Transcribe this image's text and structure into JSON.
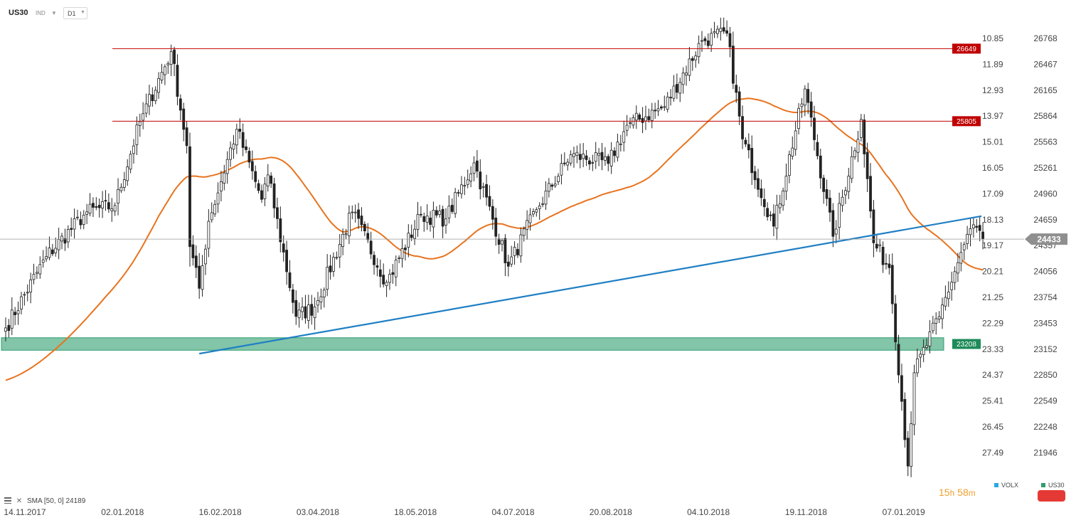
{
  "header": {
    "symbol": "US30",
    "symbol_type": "IND",
    "timeframe": "D1"
  },
  "colors": {
    "candle_up": "#ffffff",
    "candle_down": "#222222",
    "sma": "#e8731e",
    "trendline": "#1f7fc4",
    "resistance": "#c00000",
    "support_zone": "#2e9e6e",
    "price_marker": "#8f8f8f"
  },
  "chart_data": {
    "type": "candlestick",
    "symbol": "US30",
    "timeframe": "D1",
    "x_tick_labels": [
      "14.11.2017",
      "02.01.2018",
      "16.02.2018",
      "03.04.2018",
      "18.05.2018",
      "04.07.2018",
      "20.08.2018",
      "04.10.2018",
      "19.11.2018",
      "07.01.2019"
    ],
    "y_price_ticks": [
      26768,
      26467,
      26165,
      25864,
      25563,
      25261,
      24960,
      24659,
      24357,
      24056,
      23754,
      23453,
      23152,
      22850,
      22549,
      22248,
      21946
    ],
    "y_secondary_ticks": [
      "10.85",
      "11.89",
      "12.93",
      "13.97",
      "15.01",
      "16.05",
      "17.09",
      "18.13",
      "19.17",
      "20.21",
      "21.25",
      "22.29",
      "23.33",
      "24.37",
      "25.41",
      "26.45",
      "27.49"
    ],
    "ylim": [
      21740,
      26970
    ],
    "horizontal_levels": [
      {
        "label": "26649",
        "value": 26649,
        "kind": "resistance"
      },
      {
        "label": "25805",
        "value": 25805,
        "kind": "resistance"
      }
    ],
    "support_zone": {
      "label": "23208",
      "low": 23140,
      "high": 23285
    },
    "current_price": {
      "label": "24433",
      "value": 24433
    },
    "trendline": {
      "from": {
        "x": "2018-02-08",
        "y": 23100
      },
      "to": {
        "x": "2019-01-18",
        "y": 24700
      }
    },
    "sma": {
      "name": "SMA",
      "params": "[50, 0]",
      "last_value": "24189"
    },
    "anchor_closes": [
      [
        "2017-11-14",
        23400
      ],
      [
        "2017-12-01",
        24230
      ],
      [
        "2017-12-20",
        24750
      ],
      [
        "2018-01-02",
        24824
      ],
      [
        "2018-01-12",
        25800
      ],
      [
        "2018-01-26",
        26616
      ],
      [
        "2018-02-02",
        25520
      ],
      [
        "2018-02-05",
        24345
      ],
      [
        "2018-02-08",
        23860
      ],
      [
        "2018-02-13",
        24640
      ],
      [
        "2018-02-26",
        25710
      ],
      [
        "2018-03-08",
        24895
      ],
      [
        "2018-03-12",
        25180
      ],
      [
        "2018-03-23",
        23533
      ],
      [
        "2018-04-02",
        23644
      ],
      [
        "2018-04-18",
        24748
      ],
      [
        "2018-05-03",
        23930
      ],
      [
        "2018-05-18",
        24715
      ],
      [
        "2018-05-30",
        24668
      ],
      [
        "2018-06-12",
        25320
      ],
      [
        "2018-06-27",
        24117
      ],
      [
        "2018-07-10",
        24776
      ],
      [
        "2018-07-25",
        25414
      ],
      [
        "2018-08-10",
        25313
      ],
      [
        "2018-08-20",
        25758
      ],
      [
        "2018-09-05",
        25974
      ],
      [
        "2018-09-21",
        26743
      ],
      [
        "2018-10-03",
        26828
      ],
      [
        "2018-10-10",
        25598
      ],
      [
        "2018-10-24",
        24583
      ],
      [
        "2018-11-07",
        26180
      ],
      [
        "2018-11-20",
        24465
      ],
      [
        "2018-12-03",
        25826
      ],
      [
        "2018-12-07",
        24389
      ],
      [
        "2018-12-14",
        24100
      ],
      [
        "2018-12-24",
        21792
      ],
      [
        "2018-12-26",
        22878
      ],
      [
        "2019-01-07",
        23531
      ],
      [
        "2019-01-17",
        24370
      ],
      [
        "2019-01-22",
        24600
      ],
      [
        "2019-01-25",
        24433
      ]
    ]
  },
  "legend": {
    "indicator_name": "SMA",
    "indicator_params": "[50, 0]",
    "indicator_value": "24189"
  },
  "countdown": {
    "hours": "15",
    "h_unit": "h",
    "minutes": "58",
    "m_unit": "m"
  },
  "bottom_legend": {
    "volx": "VOLX",
    "us30": "US30"
  }
}
